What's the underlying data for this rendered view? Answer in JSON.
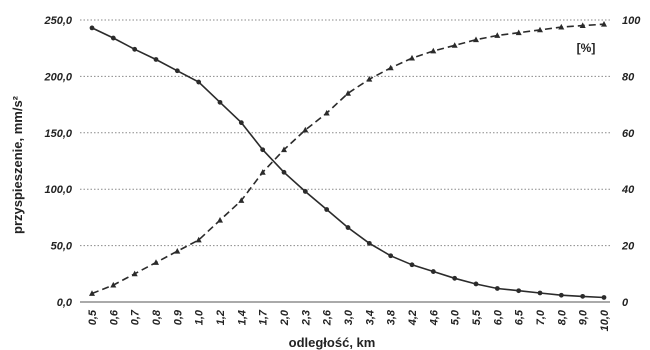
{
  "chart_data": {
    "type": "line",
    "xlabel": "odległość, km",
    "ylabel_left": "przyspieszenie, mm/s²",
    "right_unit_label": "[%]",
    "x": [
      "0,5",
      "0,6",
      "0,7",
      "0,8",
      "0,9",
      "1,0",
      "1,2",
      "1,4",
      "1,7",
      "2,0",
      "2,3",
      "2,6",
      "3,0",
      "3,4",
      "3,8",
      "4,2",
      "4,6",
      "5,0",
      "5,5",
      "6,0",
      "6,5",
      "7,0",
      "8,0",
      "9,0",
      "10,0"
    ],
    "left_axis": {
      "ylim": [
        0,
        250
      ],
      "ticks": [
        "0,0",
        "50,0",
        "100,0",
        "150,0",
        "200,0",
        "250,0"
      ]
    },
    "right_axis": {
      "ylim": [
        0,
        100
      ],
      "ticks": [
        "0",
        "20",
        "40",
        "60",
        "80",
        "100"
      ]
    },
    "grid": "horizontal-dotted",
    "series": [
      {
        "axis": "left",
        "style": "solid",
        "marker": "dot",
        "values": [
          243,
          234,
          224,
          215,
          205,
          195,
          177,
          159,
          135,
          115,
          98,
          82,
          66,
          52,
          41,
          33,
          27,
          21,
          16,
          12,
          10,
          8,
          6,
          5,
          4
        ]
      },
      {
        "axis": "right",
        "style": "dashed",
        "marker": "triangle",
        "values": [
          3,
          6,
          10,
          14,
          18,
          22,
          29,
          36,
          46,
          54,
          61,
          67,
          74,
          79,
          83,
          86.5,
          89,
          91,
          93,
          94.5,
          95.5,
          96.5,
          97.5,
          98,
          98.5
        ]
      }
    ]
  },
  "colors": {
    "line": "#2b2b2b",
    "grid": "#8a8a8a",
    "text": "#222222"
  }
}
